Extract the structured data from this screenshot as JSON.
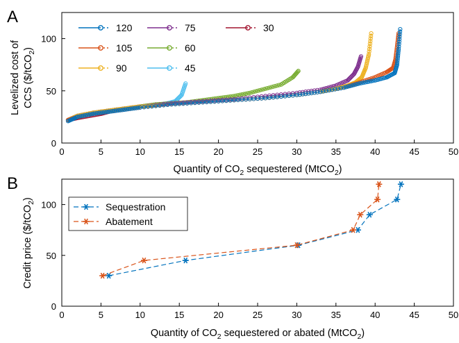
{
  "panels": [
    {
      "label": "A",
      "xlabel_parts": [
        "Quantity of CO",
        "2",
        " sequestered (MtCO",
        "2",
        ")"
      ],
      "ylabel_line1": "Levelized cost of",
      "ylabel_line2_parts": [
        "CCS ($/tCO",
        "2",
        ")"
      ]
    },
    {
      "label": "B",
      "xlabel_parts": [
        "Quantity of CO",
        "2",
        " sequestered or abated (MtCO",
        "2",
        ")"
      ],
      "ylabel_parts": [
        "Credit price ($/tCO",
        "2",
        ")"
      ]
    }
  ],
  "chart_data": [
    {
      "type": "line",
      "panel": "A",
      "xlim": [
        0,
        50
      ],
      "ylim": [
        0,
        125
      ],
      "xticks": [
        0,
        5,
        10,
        15,
        20,
        25,
        30,
        35,
        40,
        45,
        50
      ],
      "yticks": [
        0,
        50,
        100
      ],
      "grid": false,
      "legend": "top-left, 3 columns",
      "series": [
        {
          "name": "120",
          "color": "#0072BD",
          "x": [
            0.8,
            2,
            4,
            6,
            8,
            10,
            14,
            18,
            22,
            26,
            30,
            33,
            36,
            38,
            40,
            41.5,
            42.5,
            42.8,
            43.0,
            43.2
          ],
          "y": [
            21,
            25,
            28,
            30,
            32,
            34,
            37,
            39,
            41,
            43,
            46,
            49,
            53,
            57,
            60,
            63,
            67,
            75,
            90,
            109
          ]
        },
        {
          "name": "105",
          "color": "#D95319",
          "x": [
            0.8,
            2,
            4,
            6,
            8,
            10,
            14,
            18,
            22,
            26,
            30,
            33,
            36,
            38,
            40,
            41.5,
            42.3,
            42.6,
            42.8,
            43.0
          ],
          "y": [
            22,
            25,
            28,
            30,
            32,
            34,
            37,
            39,
            41,
            43,
            46,
            49,
            53,
            58,
            63,
            68,
            72,
            80,
            92,
            105
          ]
        },
        {
          "name": "90",
          "color": "#EDB120",
          "x": [
            0.8,
            2,
            4,
            6,
            8,
            10,
            14,
            18,
            22,
            26,
            30,
            33,
            35,
            36.5,
            37.5,
            38.3,
            38.8,
            39.2,
            39.5
          ],
          "y": [
            22,
            26,
            29,
            31,
            33,
            35,
            37,
            39,
            41,
            43,
            46,
            49,
            52,
            55,
            58,
            63,
            72,
            85,
            105
          ]
        },
        {
          "name": "75",
          "color": "#7E2F8E",
          "x": [
            0.8,
            2,
            4,
            6,
            8,
            10,
            14,
            18,
            22,
            26,
            30,
            33,
            35,
            36.5,
            37.3,
            37.8,
            38.2
          ],
          "y": [
            22,
            26,
            29,
            31,
            33,
            35,
            38,
            40,
            42,
            45,
            48,
            51,
            55,
            60,
            66,
            73,
            83
          ]
        },
        {
          "name": "60",
          "color": "#77AC30",
          "x": [
            0.8,
            2,
            4,
            6,
            8,
            10,
            12,
            14,
            16,
            18,
            20,
            22,
            24,
            26,
            28,
            29.5,
            30.2
          ],
          "y": [
            22,
            26,
            29,
            31,
            33,
            35,
            37,
            38,
            39,
            41,
            43,
            45,
            48,
            52,
            56,
            63,
            69
          ]
        },
        {
          "name": "45",
          "color": "#4DBEEE",
          "x": [
            0.8,
            2,
            4,
            6,
            8,
            10,
            12,
            13.5,
            14.5,
            15.3,
            15.8
          ],
          "y": [
            22,
            26,
            29,
            31,
            33,
            35,
            36.5,
            38,
            40,
            46,
            57
          ]
        },
        {
          "name": "30",
          "color": "#A2142F",
          "x": [
            0.8,
            2,
            3.5,
            5,
            6
          ],
          "y": [
            22,
            24,
            26,
            28,
            30
          ]
        }
      ]
    },
    {
      "type": "line",
      "panel": "B",
      "xlim": [
        0,
        50
      ],
      "ylim": [
        0,
        125
      ],
      "xticks": [
        0,
        5,
        10,
        15,
        20,
        25,
        30,
        35,
        40,
        45,
        50
      ],
      "yticks": [
        0,
        50,
        100
      ],
      "grid": false,
      "legend": "top-left",
      "series": [
        {
          "name": "Sequestration",
          "color": "#0072BD",
          "x": [
            6.0,
            15.8,
            30.2,
            37.8,
            39.3,
            42.8,
            43.3
          ],
          "y": [
            30,
            45,
            60,
            75,
            90,
            105,
            120
          ]
        },
        {
          "name": "Abatement",
          "color": "#D95319",
          "x": [
            5.2,
            10.5,
            30.0,
            37.2,
            38.1,
            40.3,
            40.5
          ],
          "y": [
            30,
            45,
            60,
            75,
            90,
            105,
            120
          ]
        }
      ]
    }
  ]
}
